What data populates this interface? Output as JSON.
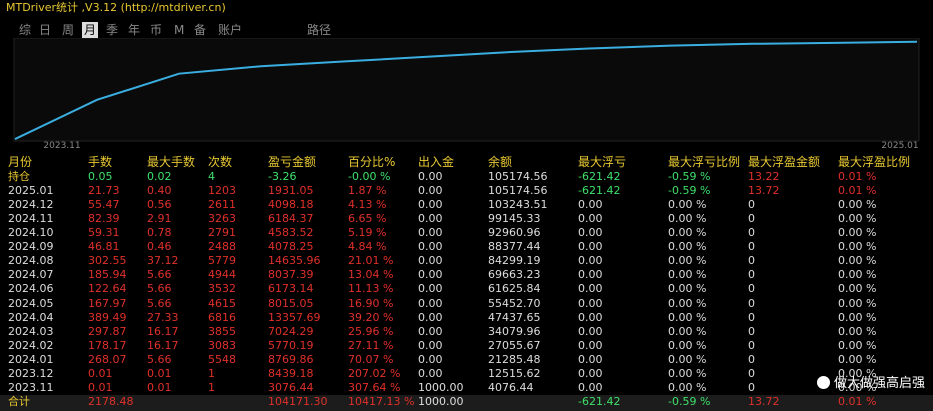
{
  "header": {
    "title": "MTDriver统计 ,V3.12 (http://mtdriver.cn)"
  },
  "tabs": [
    "综",
    "日",
    "周",
    "月",
    "季",
    "年",
    "币",
    "M",
    "备",
    "账户",
    "路径"
  ],
  "active_tab": 3,
  "chart_data": {
    "type": "line",
    "color": "#3aaee0",
    "values": [
      1000,
      43000,
      71000,
      79000,
      84000,
      89000,
      94000,
      98000,
      101000,
      103000,
      104000,
      105174
    ],
    "ylim": [
      0,
      106000
    ],
    "x_labels": [
      "2023.11",
      "2025.01"
    ]
  },
  "table": {
    "columns": [
      "月份",
      "手数",
      "最大手数",
      "次数",
      "盈亏金额",
      "百分比%",
      "出入金",
      "余额",
      "最大浮亏",
      "最大浮亏比例",
      "最大浮盈金额",
      "最大浮盈比例"
    ],
    "rows": [
      [
        "持仓",
        "0.05",
        "0.02",
        "4",
        "-3.26",
        "-0.00 %",
        "0.00",
        "105174.56",
        "-621.42",
        "-0.59 %",
        "13.22",
        "0.01 %"
      ],
      [
        "2025.01",
        "21.73",
        "0.40",
        "1203",
        "1931.05",
        "1.87 %",
        "0.00",
        "105174.56",
        "-621.42",
        "-0.59 %",
        "13.72",
        "0.01 %"
      ],
      [
        "2024.12",
        "55.47",
        "0.56",
        "2611",
        "4098.18",
        "4.13 %",
        "0.00",
        "103243.51",
        "0.00",
        "0.00 %",
        "0",
        "0.00 %"
      ],
      [
        "2024.11",
        "82.39",
        "2.91",
        "3263",
        "6184.37",
        "6.65 %",
        "0.00",
        "99145.33",
        "0.00",
        "0.00 %",
        "0",
        "0.00 %"
      ],
      [
        "2024.10",
        "59.31",
        "0.78",
        "2791",
        "4583.52",
        "5.19 %",
        "0.00",
        "92960.96",
        "0.00",
        "0.00 %",
        "0",
        "0.00 %"
      ],
      [
        "2024.09",
        "46.81",
        "0.46",
        "2488",
        "4078.25",
        "4.84 %",
        "0.00",
        "88377.44",
        "0.00",
        "0.00 %",
        "0",
        "0.00 %"
      ],
      [
        "2024.08",
        "302.55",
        "37.12",
        "5779",
        "14635.96",
        "21.01 %",
        "0.00",
        "84299.19",
        "0.00",
        "0.00 %",
        "0",
        "0.00 %"
      ],
      [
        "2024.07",
        "185.94",
        "5.66",
        "4944",
        "8037.39",
        "13.04 %",
        "0.00",
        "69663.23",
        "0.00",
        "0.00 %",
        "0",
        "0.00 %"
      ],
      [
        "2024.06",
        "122.64",
        "5.66",
        "3532",
        "6173.14",
        "11.13 %",
        "0.00",
        "61625.84",
        "0.00",
        "0.00 %",
        "0",
        "0.00 %"
      ],
      [
        "2024.05",
        "167.97",
        "5.66",
        "4615",
        "8015.05",
        "16.90 %",
        "0.00",
        "55452.70",
        "0.00",
        "0.00 %",
        "0",
        "0.00 %"
      ],
      [
        "2024.04",
        "389.49",
        "27.33",
        "6816",
        "13357.69",
        "39.20 %",
        "0.00",
        "47437.65",
        "0.00",
        "0.00 %",
        "0",
        "0.00 %"
      ],
      [
        "2024.03",
        "297.87",
        "16.17",
        "3855",
        "7024.29",
        "25.96 %",
        "0.00",
        "34079.96",
        "0.00",
        "0.00 %",
        "0",
        "0.00 %"
      ],
      [
        "2024.02",
        "178.17",
        "16.17",
        "3083",
        "5770.19",
        "27.11 %",
        "0.00",
        "27055.67",
        "0.00",
        "0.00 %",
        "0",
        "0.00 %"
      ],
      [
        "2024.01",
        "268.07",
        "5.66",
        "5548",
        "8769.86",
        "70.07 %",
        "0.00",
        "21285.48",
        "0.00",
        "0.00 %",
        "0",
        "0.00 %"
      ],
      [
        "2023.12",
        "0.01",
        "0.01",
        "1",
        "8439.18",
        "207.02 %",
        "0.00",
        "12515.62",
        "0.00",
        "0.00 %",
        "0",
        "0.00 %"
      ],
      [
        "2023.11",
        "0.01",
        "0.01",
        "1",
        "3076.44",
        "307.64 %",
        "1000.00",
        "4076.44",
        "0.00",
        "0.00 %",
        "0",
        "0.00 %"
      ],
      [
        "合计",
        "2178.48",
        null,
        null,
        "104171.30",
        "10417.13 %",
        "1000.00",
        null,
        "-621.42",
        "-0.59 %",
        "13.72",
        "0.01 %"
      ]
    ]
  },
  "watermark": "做大做强高启强"
}
